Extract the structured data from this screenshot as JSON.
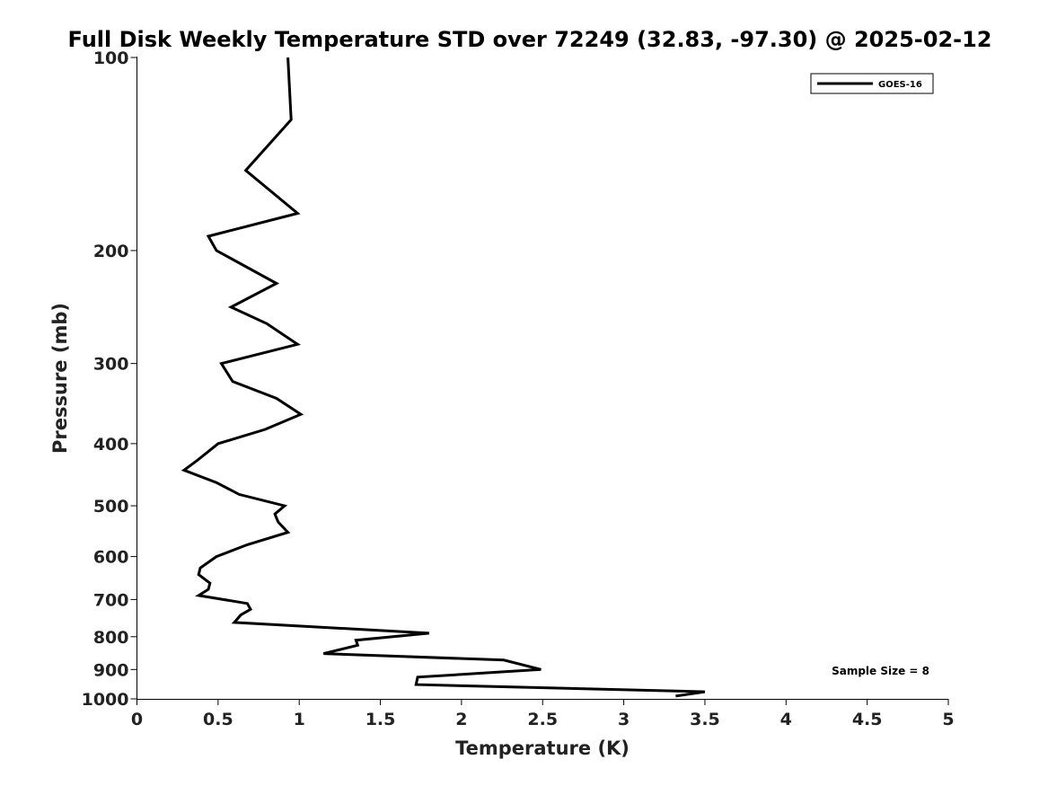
{
  "chart_data": {
    "type": "line",
    "title": "Full Disk Weekly Temperature STD over 72249 (32.83, -97.30) @ 2025-02-12",
    "xlabel": "Temperature (K)",
    "ylabel": "Pressure (mb)",
    "xlim": [
      0,
      5
    ],
    "ylim": [
      1000,
      100
    ],
    "yscale": "log",
    "x_ticks": [
      0,
      0.5,
      1,
      1.5,
      2,
      2.5,
      3,
      3.5,
      4,
      4.5,
      5
    ],
    "x_tick_labels": [
      "0",
      "0.5",
      "1",
      "1.5",
      "2",
      "2.5",
      "3",
      "3.5",
      "4",
      "4.5",
      "5"
    ],
    "y_ticks": [
      100,
      200,
      300,
      400,
      500,
      600,
      700,
      800,
      900,
      1000
    ],
    "y_tick_labels": [
      "100",
      "200",
      "300",
      "400",
      "500",
      "600",
      "700",
      "800",
      "900",
      "1000"
    ],
    "grid": false,
    "legend_position": "top-right",
    "series": [
      {
        "name": "GOES-16",
        "color": "#000000",
        "points": [
          [
            0.93,
            100
          ],
          [
            0.95,
            125
          ],
          [
            0.67,
            150
          ],
          [
            0.99,
            175
          ],
          [
            0.44,
            190
          ],
          [
            0.49,
            200
          ],
          [
            0.86,
            225
          ],
          [
            0.58,
            245
          ],
          [
            0.8,
            260
          ],
          [
            0.99,
            280
          ],
          [
            0.52,
            300
          ],
          [
            0.59,
            320
          ],
          [
            0.86,
            340
          ],
          [
            1.01,
            360
          ],
          [
            0.79,
            380
          ],
          [
            0.5,
            400
          ],
          [
            0.37,
            425
          ],
          [
            0.29,
            440
          ],
          [
            0.49,
            460
          ],
          [
            0.63,
            480
          ],
          [
            0.91,
            500
          ],
          [
            0.85,
            515
          ],
          [
            0.87,
            530
          ],
          [
            0.93,
            550
          ],
          [
            0.68,
            575
          ],
          [
            0.49,
            600
          ],
          [
            0.39,
            625
          ],
          [
            0.38,
            640
          ],
          [
            0.45,
            660
          ],
          [
            0.44,
            675
          ],
          [
            0.38,
            690
          ],
          [
            0.68,
            710
          ],
          [
            0.7,
            725
          ],
          [
            0.64,
            740
          ],
          [
            0.6,
            760
          ],
          [
            1.8,
            790
          ],
          [
            1.35,
            810
          ],
          [
            1.36,
            825
          ],
          [
            1.15,
            850
          ],
          [
            2.26,
            870
          ],
          [
            2.49,
            900
          ],
          [
            1.73,
            925
          ],
          [
            1.72,
            950
          ],
          [
            3.5,
            975
          ],
          [
            3.32,
            990
          ]
        ]
      }
    ],
    "annotations": [
      {
        "text": "Sample Size = 8",
        "x": 4.5,
        "p": 900
      }
    ]
  }
}
